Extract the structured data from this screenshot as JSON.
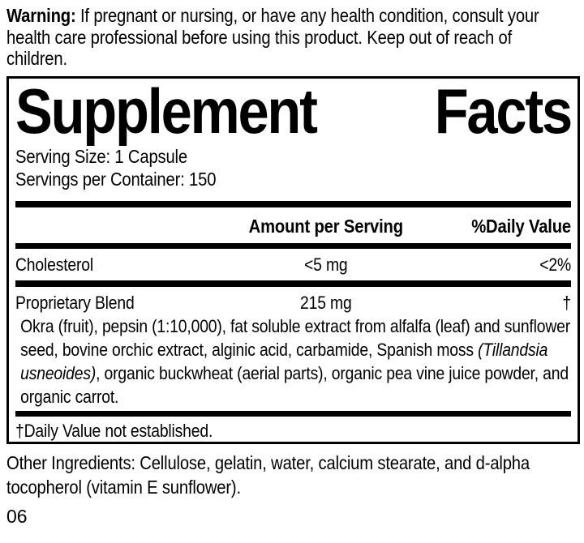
{
  "warning": {
    "label": "Warning:",
    "text": " If pregnant or nursing, or have any health condition, consult your health care professional before using this product. Keep out of reach of children."
  },
  "panel": {
    "title": {
      "word1": "Supplement",
      "word2": "Facts"
    },
    "serving_size": "Serving Size: 1 Capsule",
    "servings_per_container": "Servings per Container: 150",
    "header": {
      "amount": "Amount per Serving",
      "daily_value": "%Daily Value"
    },
    "rows": [
      {
        "name": "Cholesterol",
        "amount": "<5 mg",
        "dv": "<2%"
      },
      {
        "name": "Proprietary Blend",
        "amount": "215 mg",
        "dv": "†"
      }
    ],
    "blend_description": {
      "pre_italic": "Okra (fruit), pepsin (1:10,000), fat soluble extract from alfalfa (leaf) and sunflower seed, bovine orchic extract, alginic acid, carbamide, Spanish moss ",
      "italic": "(Tillandsia usneoides)",
      "post_italic": ", organic buckwheat (aerial parts), organic pea vine juice powder, and organic carrot."
    },
    "footnote": "†Daily Value not established."
  },
  "other_ingredients": "Other Ingredients: Cellulose, gelatin, water, calcium stearate, and d-alpha tocopherol (vitamin E sunflower).",
  "footer_code": "06",
  "colors": {
    "text": "#000000",
    "background": "#ffffff",
    "rule": "#000000"
  }
}
